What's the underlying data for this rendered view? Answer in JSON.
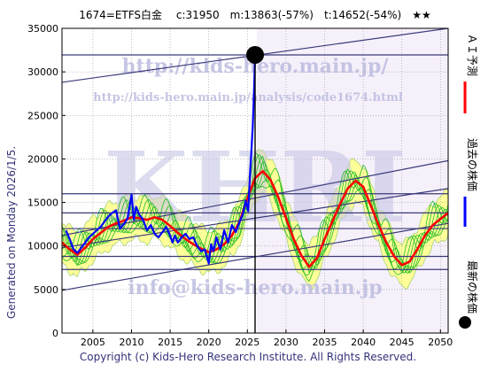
{
  "header": {
    "title": "1674=ETFS白金　 c:31950　m:13863(-57%)　t:14652(-54%)　★★"
  },
  "side": {
    "generated": "Generated on Monday 2026/1/5."
  },
  "footer": {
    "copyright": "Copyright (c) Kids-Hero Research Institute. All Rights Reserved."
  },
  "watermarks": {
    "url_top": "http://kids-hero.main.jp/",
    "url_analysis": "http://kids-hero.main.jp/analysis/code1674.html",
    "big": "KHRI",
    "email": "info@kids-hero.main.jp"
  },
  "legend": {
    "forecast": "ＡＩ予測",
    "past": "過去の株価",
    "latest": "最新の株価"
  },
  "colors": {
    "forecast": "#ff0000",
    "past": "#0000ff",
    "latest": "#000000",
    "band": "#ffff99",
    "green": "#22bb22",
    "lines": "#3a3a7a",
    "watermark": "#bcbce0"
  },
  "chart_data": {
    "type": "line",
    "xlim": [
      2001,
      2051
    ],
    "ylim": [
      0,
      35000
    ],
    "x_ticks": [
      2005,
      2010,
      2015,
      2020,
      2025,
      2030,
      2035,
      2040,
      2045,
      2050
    ],
    "y_ticks": [
      0,
      5000,
      10000,
      15000,
      20000,
      25000,
      30000,
      35000
    ],
    "grid": true,
    "current": {
      "x": 2026.0,
      "y": 31950
    },
    "horizontal_lines": [
      7300,
      8800,
      12000,
      13800,
      16000,
      31950
    ],
    "trend_lines": [
      {
        "x": [
          2001,
          2051
        ],
        "y": [
          28800,
          35000
        ]
      },
      {
        "x": [
          2001,
          2051
        ],
        "y": [
          11200,
          19800
        ]
      },
      {
        "x": [
          2001,
          2051
        ],
        "y": [
          9800,
          16600
        ]
      },
      {
        "x": [
          2001,
          2051
        ],
        "y": [
          4900,
          12600
        ]
      }
    ],
    "past": [
      [
        2001.5,
        11800
      ],
      [
        2002,
        10800
      ],
      [
        2002.5,
        9600
      ],
      [
        2003,
        9200
      ],
      [
        2003.5,
        9800
      ],
      [
        2004,
        10400
      ],
      [
        2004.5,
        11000
      ],
      [
        2005,
        11400
      ],
      [
        2005.5,
        11800
      ],
      [
        2006,
        12200
      ],
      [
        2006.5,
        12800
      ],
      [
        2007,
        13400
      ],
      [
        2007.5,
        13800
      ],
      [
        2008,
        14100
      ],
      [
        2008.5,
        12000
      ],
      [
        2009,
        12500
      ],
      [
        2009.5,
        13200
      ],
      [
        2010,
        15900
      ],
      [
        2010.3,
        13000
      ],
      [
        2010.6,
        14500
      ],
      [
        2011,
        13600
      ],
      [
        2011.5,
        13000
      ],
      [
        2012,
        11800
      ],
      [
        2012.5,
        12400
      ],
      [
        2013,
        11400
      ],
      [
        2013.5,
        11000
      ],
      [
        2014,
        11600
      ],
      [
        2014.5,
        12200
      ],
      [
        2015,
        11200
      ],
      [
        2015.3,
        10400
      ],
      [
        2015.6,
        11200
      ],
      [
        2016,
        10400
      ],
      [
        2016.5,
        11000
      ],
      [
        2017,
        11400
      ],
      [
        2017.5,
        10800
      ],
      [
        2018,
        11000
      ],
      [
        2018.5,
        10000
      ],
      [
        2019,
        9400
      ],
      [
        2019.5,
        9600
      ],
      [
        2020,
        8000
      ],
      [
        2020.3,
        10200
      ],
      [
        2020.6,
        9400
      ],
      [
        2021,
        11000
      ],
      [
        2021.5,
        9600
      ],
      [
        2022,
        11800
      ],
      [
        2022.5,
        10400
      ],
      [
        2023,
        12400
      ],
      [
        2023.5,
        11600
      ],
      [
        2024,
        12800
      ],
      [
        2024.4,
        13600
      ],
      [
        2024.8,
        15200
      ],
      [
        2025.1,
        14000
      ],
      [
        2025.3,
        17500
      ],
      [
        2025.5,
        20500
      ],
      [
        2025.7,
        23800
      ],
      [
        2025.85,
        27500
      ],
      [
        2026.0,
        31950
      ]
    ],
    "forecast": [
      [
        2001,
        10400
      ],
      [
        2002,
        9600
      ],
      [
        2003,
        9000
      ],
      [
        2004,
        9800
      ],
      [
        2005,
        10800
      ],
      [
        2006,
        11500
      ],
      [
        2007,
        12200
      ],
      [
        2008,
        12600
      ],
      [
        2009,
        12900
      ],
      [
        2010,
        13300
      ],
      [
        2011,
        13200
      ],
      [
        2012,
        13000
      ],
      [
        2013,
        13300
      ],
      [
        2014,
        13000
      ],
      [
        2015,
        12300
      ],
      [
        2016,
        11500
      ],
      [
        2017,
        10800
      ],
      [
        2018,
        10200
      ],
      [
        2019,
        9700
      ],
      [
        2020,
        9300
      ],
      [
        2021,
        9600
      ],
      [
        2022,
        10200
      ],
      [
        2023,
        11200
      ],
      [
        2024,
        12800
      ],
      [
        2025,
        15500
      ],
      [
        2026,
        17800
      ],
      [
        2027,
        18600
      ],
      [
        2028,
        17600
      ],
      [
        2029,
        15600
      ],
      [
        2030,
        13200
      ],
      [
        2031,
        10800
      ],
      [
        2032,
        8900
      ],
      [
        2033,
        7600
      ],
      [
        2034,
        8600
      ],
      [
        2035,
        10800
      ],
      [
        2036,
        12800
      ],
      [
        2037,
        14800
      ],
      [
        2038,
        16600
      ],
      [
        2039,
        17500
      ],
      [
        2040,
        16800
      ],
      [
        2041,
        14600
      ],
      [
        2042,
        12400
      ],
      [
        2043,
        10400
      ],
      [
        2044,
        8800
      ],
      [
        2045,
        7800
      ],
      [
        2046,
        8200
      ],
      [
        2047,
        9600
      ],
      [
        2048,
        11200
      ],
      [
        2049,
        12400
      ],
      [
        2050,
        13100
      ],
      [
        2051,
        13800
      ]
    ]
  }
}
